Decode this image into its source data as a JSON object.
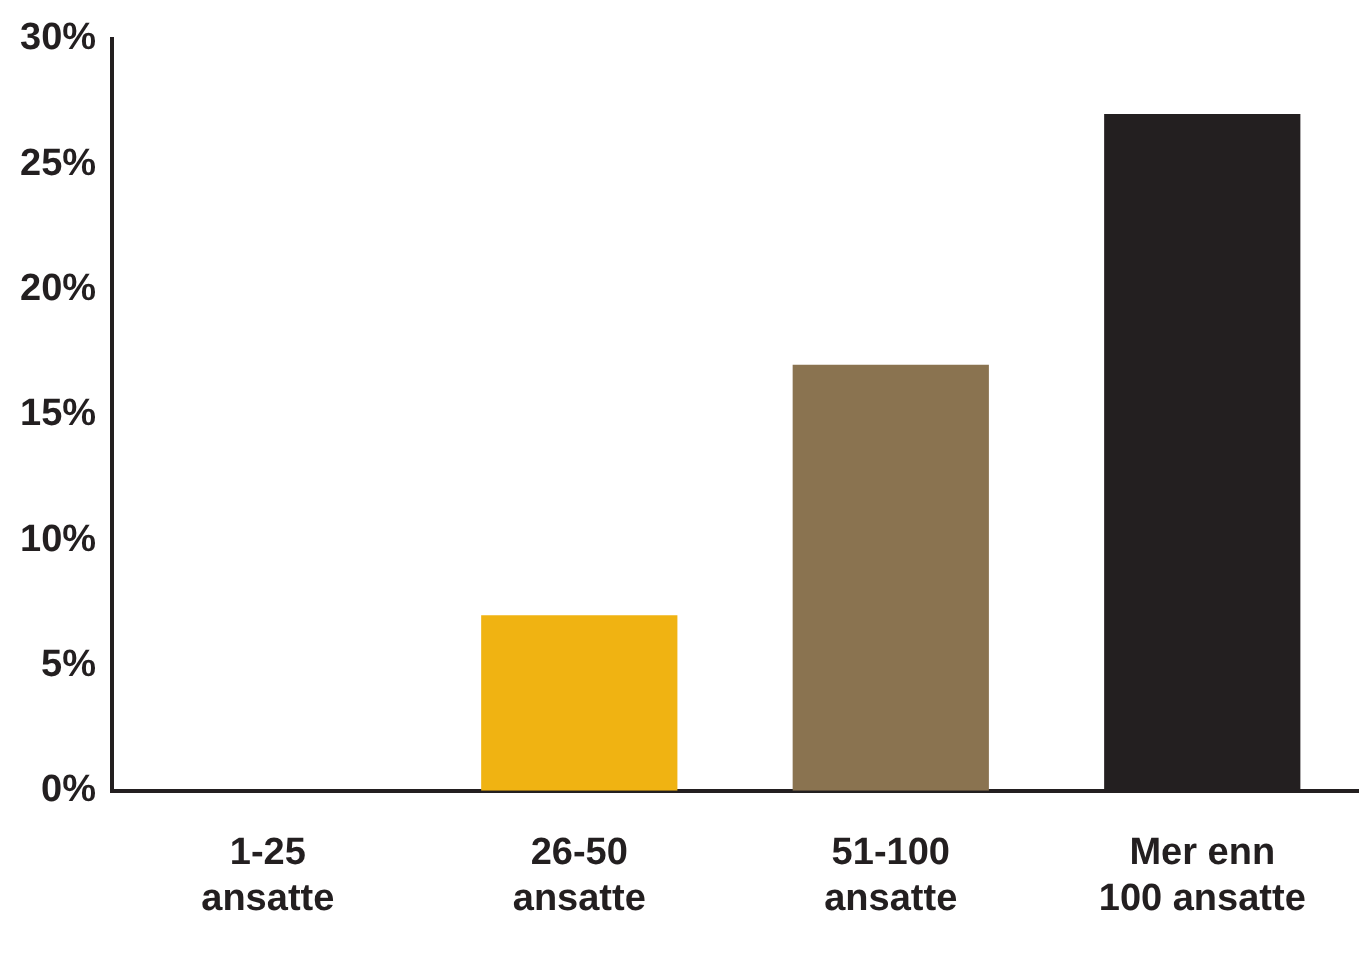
{
  "chart_data": {
    "type": "bar",
    "categories": [
      "1-25\nansatte",
      "26-50\nansatte",
      "51-100\nansatte",
      "Mer enn\n100 ansatte"
    ],
    "values": [
      0,
      7,
      17,
      27
    ],
    "colors": [
      "#f0b312",
      "#f0b312",
      "#8a7350",
      "#231f20"
    ],
    "ylim": [
      0,
      30
    ],
    "yticks": [
      {
        "value": 0,
        "label": "0%"
      },
      {
        "value": 5,
        "label": "5%"
      },
      {
        "value": 10,
        "label": "10%"
      },
      {
        "value": 15,
        "label": "15%"
      },
      {
        "value": 20,
        "label": "20%"
      },
      {
        "value": 25,
        "label": "25%"
      },
      {
        "value": 30,
        "label": "30%"
      }
    ],
    "grid": false
  }
}
